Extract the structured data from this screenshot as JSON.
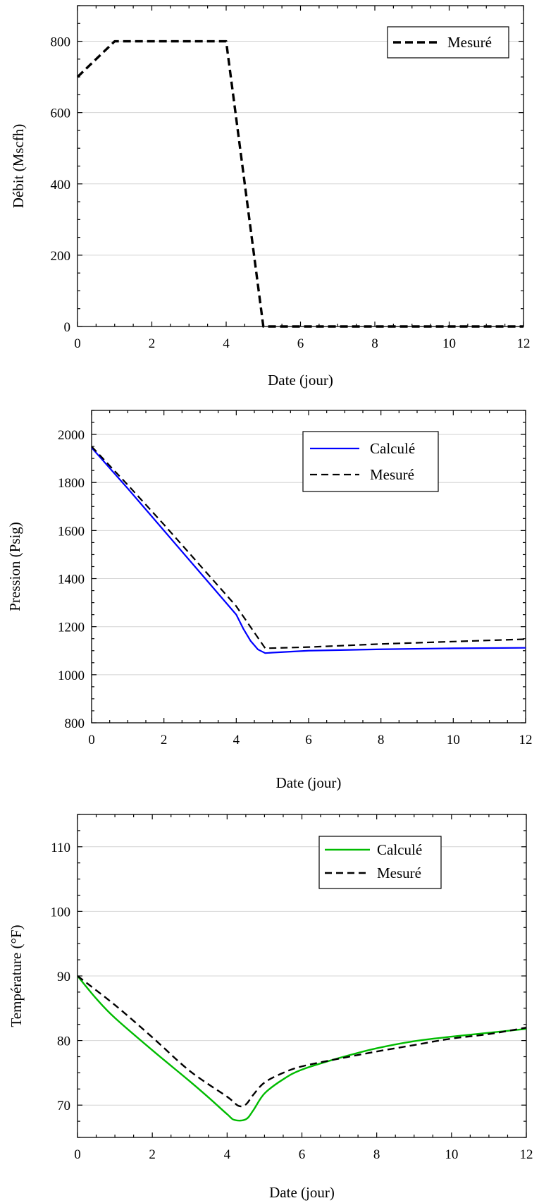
{
  "chart_data": [
    {
      "type": "line",
      "xlabel": "Date (jour)",
      "ylabel": "Débit (Mscfh)",
      "xlim": [
        0,
        12
      ],
      "ylim": [
        0,
        900
      ],
      "xticks": [
        0,
        2,
        4,
        6,
        8,
        10,
        12
      ],
      "yticks": [
        0,
        200,
        400,
        600,
        800
      ],
      "grid": "horizontal",
      "legend": "top-right",
      "series": [
        {
          "name": "Mesuré",
          "color": "#000000",
          "style": "dashed-bold",
          "x": [
            0,
            1,
            4,
            5,
            12
          ],
          "y": [
            700,
            800,
            800,
            0,
            0
          ]
        }
      ]
    },
    {
      "type": "line",
      "xlabel": "Date (jour)",
      "ylabel": "Pression (Psig)",
      "xlim": [
        0,
        12
      ],
      "ylim": [
        800,
        2100
      ],
      "xticks": [
        0,
        2,
        4,
        6,
        8,
        10,
        12
      ],
      "yticks": [
        800,
        1000,
        1200,
        1400,
        1600,
        1800,
        2000
      ],
      "grid": "horizontal",
      "legend": "top-right",
      "series": [
        {
          "name": "Calculé",
          "color": "#0000ff",
          "style": "solid",
          "x": [
            0,
            1,
            2,
            3,
            4,
            4.2,
            4.4,
            4.6,
            4.8,
            5,
            6,
            8,
            10,
            12
          ],
          "y": [
            1945,
            1775,
            1600,
            1425,
            1250,
            1190,
            1140,
            1105,
            1090,
            1092,
            1100,
            1106,
            1110,
            1112
          ]
        },
        {
          "name": "Mesuré",
          "color": "#000000",
          "style": "dashed",
          "x": [
            0,
            1,
            2,
            3,
            4,
            4.8,
            6,
            8,
            10,
            12
          ],
          "y": [
            1950,
            1790,
            1625,
            1455,
            1285,
            1110,
            1115,
            1128,
            1138,
            1148
          ]
        }
      ]
    },
    {
      "type": "line",
      "xlabel": "Date (jour)",
      "ylabel": "Température (°F)",
      "xlim": [
        0,
        12
      ],
      "ylim": [
        65,
        115
      ],
      "xticks": [
        0,
        2,
        4,
        6,
        8,
        10,
        12
      ],
      "yticks": [
        70,
        80,
        90,
        100,
        110
      ],
      "grid": "horizontal",
      "legend": "top-right",
      "series": [
        {
          "name": "Calculé",
          "color": "#00bb00",
          "style": "solid",
          "x": [
            0,
            0.5,
            1,
            2,
            3,
            3.5,
            4,
            4.2,
            4.5,
            4.7,
            5,
            5.5,
            6,
            7,
            8,
            9,
            10,
            11,
            12
          ],
          "y": [
            90,
            86.5,
            83.5,
            78.5,
            73.7,
            71.2,
            68.6,
            67.7,
            67.8,
            69.2,
            71.8,
            74,
            75.5,
            77.3,
            78.8,
            79.9,
            80.6,
            81.2,
            81.8
          ],
          "smooth": true
        },
        {
          "name": "Mesuré",
          "color": "#000000",
          "style": "dashed",
          "x": [
            0,
            1,
            2,
            3,
            4,
            4.3,
            4.5,
            4.7,
            5,
            5.5,
            6,
            7,
            8,
            9,
            10,
            11,
            12
          ],
          "y": [
            90,
            85.5,
            80.5,
            75.3,
            71.3,
            69.9,
            70.1,
            71.6,
            73.5,
            75,
            76,
            77.2,
            78.3,
            79.3,
            80.3,
            81,
            82
          ],
          "smooth": true
        }
      ]
    }
  ]
}
